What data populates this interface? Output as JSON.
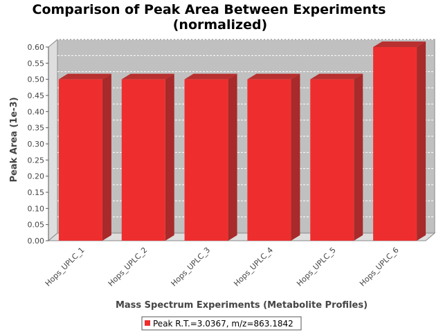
{
  "chart_data": {
    "type": "bar",
    "title": "Comparison of Peak Area Between Experiments",
    "subtitle": "(normalized)",
    "xlabel": "Mass Spectrum Experiments (Metabolite Profiles)",
    "ylabel": "Peak Area (1e-3)",
    "categories": [
      "Hops_UPLC_1",
      "Hops_UPLC_2",
      "Hops_UPLC_3",
      "Hops_UPLC_4",
      "Hops_UPLC_5",
      "Hops_UPLC_6"
    ],
    "series": [
      {
        "name": "Peak R.T.=3.0367, m/z=863.1842",
        "values": [
          0.5,
          0.5,
          0.5,
          0.5,
          0.5,
          0.6
        ]
      }
    ],
    "ylim": [
      0,
      0.6
    ],
    "yticks": [
      "0.00",
      "0.05",
      "0.10",
      "0.15",
      "0.20",
      "0.25",
      "0.30",
      "0.35",
      "0.40",
      "0.45",
      "0.50",
      "0.55",
      "0.60"
    ],
    "grid": true,
    "legend_position": "bottom",
    "colors": {
      "bar": "#ee2e2e",
      "plot_bg": "#c0c0c0"
    }
  }
}
